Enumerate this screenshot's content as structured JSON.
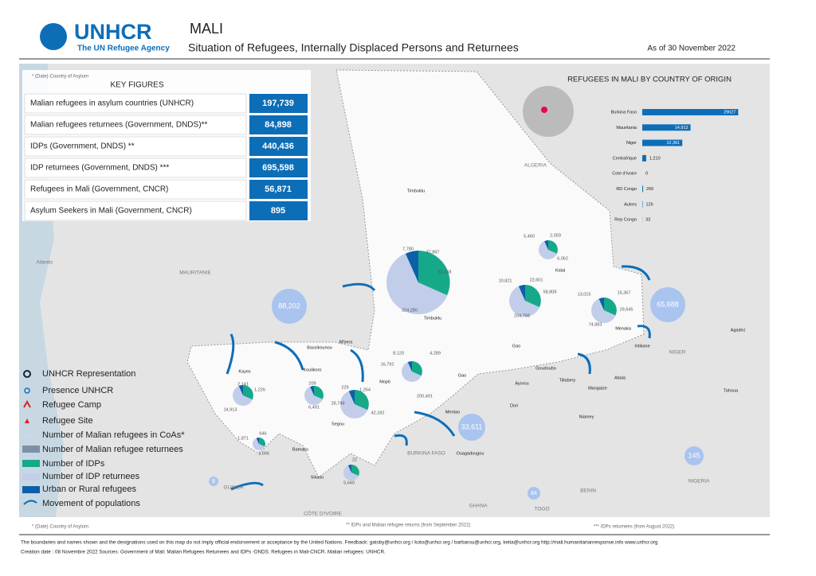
{
  "header": {
    "logo": "UNHCR",
    "logo_sub": "The UN Refugee Agency",
    "title": "MALI",
    "subtitle": "Situation of Refugees, Internally Displaced Persons and Returnees",
    "date": "As of 30 November 2022"
  },
  "key_figures": {
    "note": "* (Date) Country of Asylum",
    "title": "KEY FIGURES",
    "rows": [
      {
        "label": "Malian refugees in asylum countries (UNHCR)",
        "value": "197,739"
      },
      {
        "label": "Malian refugees returnees (Government, DNDS)**",
        "value": "84,898"
      },
      {
        "label": "IDPs (Government, DNDS) **",
        "value": "440,436"
      },
      {
        "label": "IDP returnees (Government, DNDS) ***",
        "value": "695,598"
      },
      {
        "label": "Refugees in Mali (Government, CNCR)",
        "value": "56,871"
      },
      {
        "label": "Asylum Seekers in Mali (Government, CNCR)",
        "value": "895"
      }
    ]
  },
  "chart_data": {
    "type": "bar",
    "title": "REFUGEES IN MALI BY COUNTRY OF ORIGIN",
    "categories": [
      "Burkina Faso",
      "Mauritania",
      "Niger",
      "Centrafrique",
      "Cote d'Ivoire",
      "RD Congo",
      "Autres",
      "Rep Congo"
    ],
    "values": [
      29627,
      14912,
      12361,
      1210,
      0,
      260,
      126,
      33
    ],
    "value_labels": [
      "29627",
      "14,912",
      "12,361",
      "1,210",
      "0",
      "260",
      "126",
      "33"
    ],
    "xlim": [
      0,
      32000
    ],
    "color": "#0d6eb8"
  },
  "map_labels": [
    "ALGERIA",
    "MAURITANIE",
    "NIGER",
    "BURKINA FASO",
    "GUINEA",
    "CÔTE D'IVOIRE",
    "GHANA",
    "BENIN",
    "TOGO",
    "NIGERIA",
    "Atlantic",
    "Timbuktu",
    "Kidal",
    "Gao",
    "Menaka",
    "Mopti",
    "Segou",
    "Kayes",
    "Koulikoro",
    "Sikaso",
    "Bamako",
    "Timbuktu",
    "Bassikounou",
    "M'bera",
    "Goudoubo",
    "Gao",
    "Agadez",
    "Tahoua",
    "Niamey",
    "Ouagadougou",
    "Mentao",
    "Abala",
    "Mangaize",
    "Tillabery",
    "Ayorou",
    "Intikane",
    "Dori"
  ],
  "pie_labels": [
    "7,780",
    "37,887",
    "53,768",
    "324,280",
    "5,460",
    "2,059",
    "6,062",
    "10,821",
    "22,601",
    "58,808",
    "204,768",
    "13,015",
    "15,367",
    "29,645",
    "74,883",
    "8,120",
    "4,289",
    "16,792",
    "200,491",
    "229",
    "1,264",
    "42,182",
    "28,749",
    "209",
    "6,491",
    "2,141",
    "1,226",
    "14,913",
    "1,871",
    "646",
    "3,666",
    "22",
    "5,640"
  ],
  "bubbles": [
    "88,202",
    "65,688",
    "33,611",
    "8",
    "84",
    "145"
  ],
  "legend": [
    "UNHCR Representation",
    "Presence UNHCR",
    "Refugee Camp",
    "Refugee Site",
    "Number of Malian refugees in CoAs*",
    "Number of Malian refugee returnees",
    "Number of IDPs",
    "Number of IDP returnees",
    "Urban or Rural refugees",
    "Movement of populations"
  ],
  "footer": {
    "note1": "* (Date) Country of Asylum",
    "note2": "** IDPs and Malian refugee returns (from September 2022)",
    "note3": "*** IDPs returnees (from August 2022)",
    "disclaimer": "The boundaries and names shown and the designations used on this map do not imply official endorsement or acceptance by the United Nations.    Feedback: gatsby@unhcr.org / koto@unhcr.org / barbarou@unhcr.org, keita@unhcr.org     http://mali.humanitarianresponse.info    www.unhcr.org",
    "credits": "Creation date : 08 Novembre 2022      Sources: Government of Mali: Malian Refugees Returnees and IDPs -DNDS. Refugees in Mali-CNCR. Malian refugees: UNHCR."
  }
}
